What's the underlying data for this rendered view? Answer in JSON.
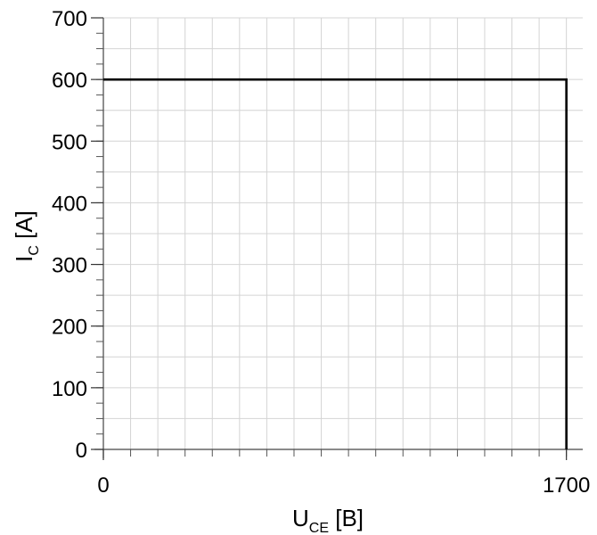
{
  "chart_data": {
    "type": "line",
    "xlabel": {
      "main": "U",
      "sub": "CE",
      "unit": " [B]"
    },
    "ylabel": {
      "main": "I",
      "sub": "C",
      "unit": " [A]"
    },
    "xlim": [
      0,
      1760
    ],
    "ylim": [
      0,
      700
    ],
    "x_ticks": [
      {
        "value": 0,
        "label": "0"
      },
      {
        "value": 1700,
        "label": "1700"
      }
    ],
    "y_ticks": [
      {
        "value": 0,
        "label": "0"
      },
      {
        "value": 100,
        "label": "100"
      },
      {
        "value": 200,
        "label": "200"
      },
      {
        "value": 300,
        "label": "300"
      },
      {
        "value": 400,
        "label": "400"
      },
      {
        "value": 500,
        "label": "500"
      },
      {
        "value": 600,
        "label": "600"
      },
      {
        "value": 700,
        "label": "700"
      }
    ],
    "x_grid_step": 100,
    "y_grid_step": 50,
    "grid": true,
    "series": [
      {
        "color": "#000000",
        "x": [
          0,
          1700,
          1700
        ],
        "y": [
          600,
          600,
          0
        ]
      }
    ]
  }
}
